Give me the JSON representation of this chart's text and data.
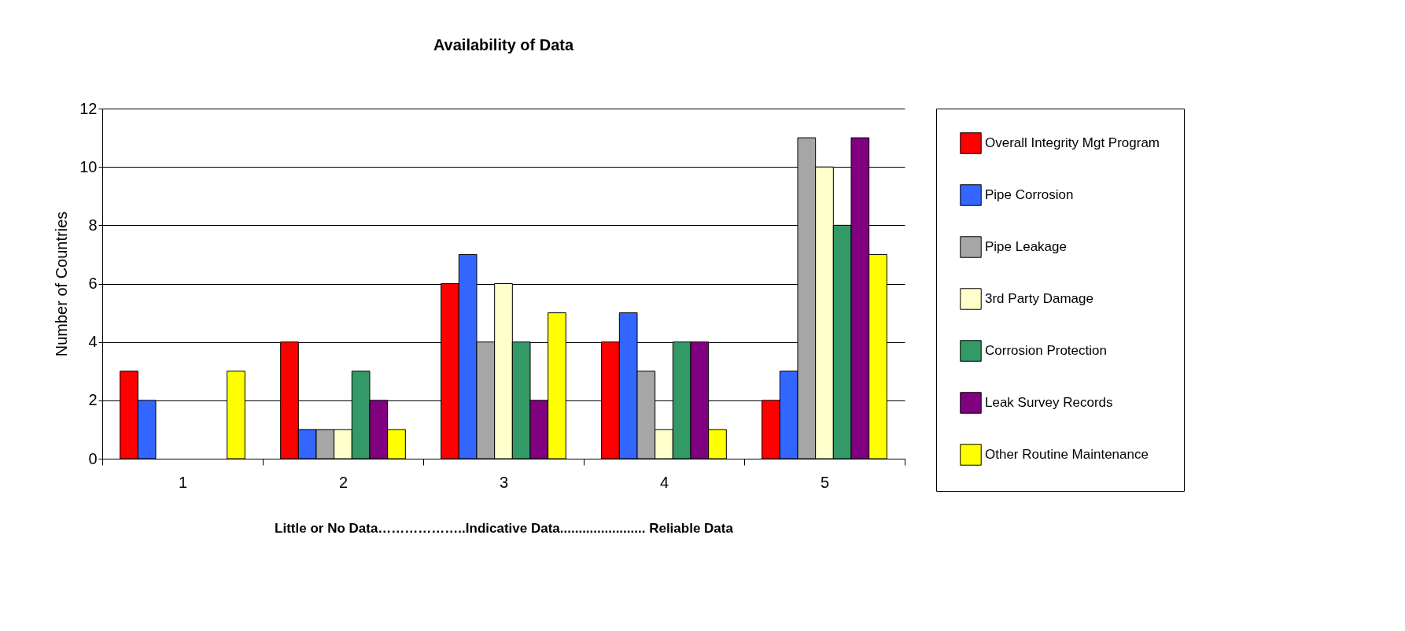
{
  "chart_data": {
    "type": "bar",
    "title": "Availability of Data",
    "xlabel": "Little or No Data………………..Indicative Data....................... Reliable Data",
    "ylabel": "Number of Countries",
    "categories": [
      "1",
      "2",
      "3",
      "4",
      "5"
    ],
    "series": [
      {
        "name": "Overall Integrity Mgt Program",
        "color": "#ff0000",
        "values": [
          3,
          4,
          6,
          4,
          2
        ]
      },
      {
        "name": "Pipe Corrosion",
        "color": "#3366ff",
        "values": [
          2,
          1,
          7,
          5,
          3
        ]
      },
      {
        "name": "Pipe Leakage",
        "color": "#a6a6a6",
        "values": [
          null,
          1,
          4,
          3,
          11
        ]
      },
      {
        "name": "3rd Party Damage",
        "color": "#ffffcc",
        "values": [
          null,
          1,
          6,
          1,
          10
        ]
      },
      {
        "name": "Corrosion Protection",
        "color": "#339966",
        "values": [
          null,
          3,
          4,
          4,
          8
        ]
      },
      {
        "name": "Leak Survey Records",
        "color": "#800080",
        "values": [
          null,
          2,
          2,
          4,
          11
        ]
      },
      {
        "name": "Other Routine Maintenance",
        "color": "#ffff00",
        "values": [
          3,
          1,
          5,
          1,
          7
        ]
      }
    ],
    "ylim": [
      0,
      12
    ],
    "yticks": [
      0,
      2,
      4,
      6,
      8,
      10,
      12
    ],
    "grid": "y",
    "legend": "right"
  }
}
